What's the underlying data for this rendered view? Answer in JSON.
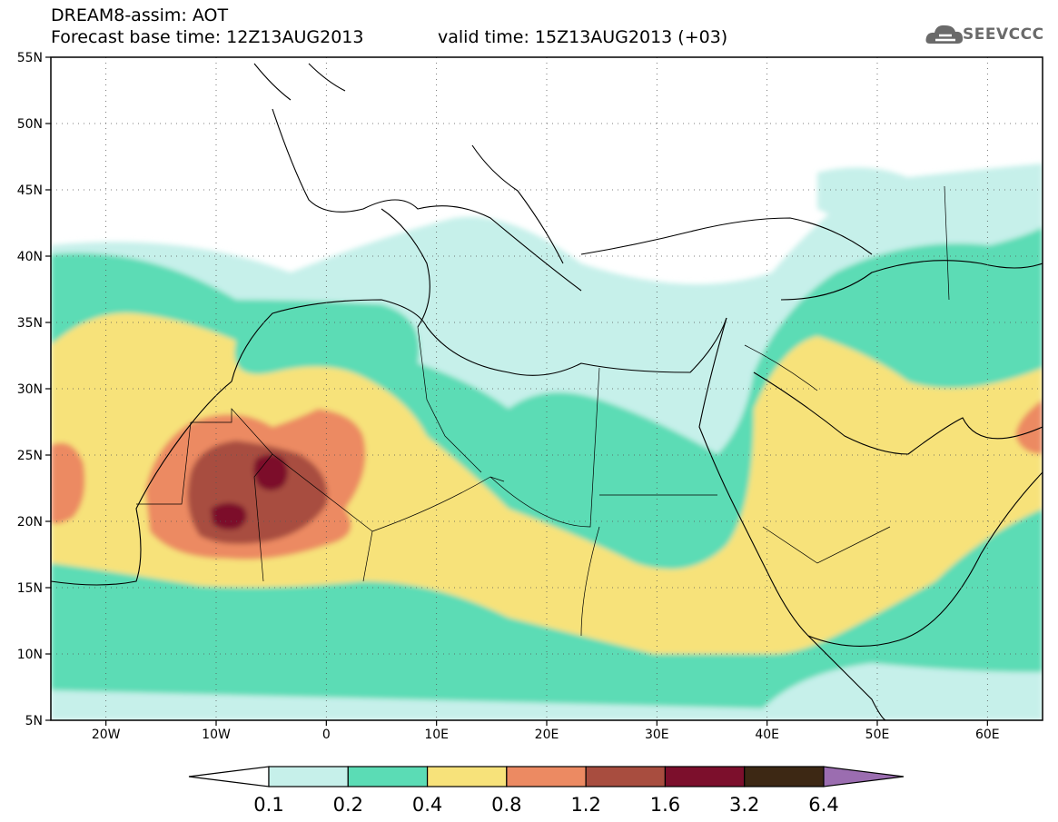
{
  "header": {
    "line1": "DREAM8-assim: AOT",
    "line2": "Forecast base time: 12Z13AUG2013",
    "line3": "valid time: 15Z13AUG2013 (+03)"
  },
  "logo": {
    "text": "SEEVCCC",
    "icon": "cloud-icon"
  },
  "map": {
    "projection": "lat-lon",
    "lon_range": [
      -25,
      65
    ],
    "lat_range": [
      5,
      55
    ],
    "lat_ticks": [
      {
        "value": 5,
        "label": "5N"
      },
      {
        "value": 10,
        "label": "10N"
      },
      {
        "value": 15,
        "label": "15N"
      },
      {
        "value": 20,
        "label": "20N"
      },
      {
        "value": 25,
        "label": "25N"
      },
      {
        "value": 30,
        "label": "30N"
      },
      {
        "value": 35,
        "label": "35N"
      },
      {
        "value": 40,
        "label": "40N"
      },
      {
        "value": 45,
        "label": "45N"
      },
      {
        "value": 50,
        "label": "50N"
      },
      {
        "value": 55,
        "label": "55N"
      }
    ],
    "lon_ticks": [
      {
        "value": -20,
        "label": "20W"
      },
      {
        "value": -10,
        "label": "10W"
      },
      {
        "value": 0,
        "label": "0"
      },
      {
        "value": 10,
        "label": "10E"
      },
      {
        "value": 20,
        "label": "20E"
      },
      {
        "value": 30,
        "label": "30E"
      },
      {
        "value": 40,
        "label": "40E"
      },
      {
        "value": 50,
        "label": "50E"
      },
      {
        "value": 60,
        "label": "60E"
      }
    ],
    "gridlines": "dotted"
  },
  "colorbar": {
    "levels": [
      "0.1",
      "0.2",
      "0.4",
      "0.8",
      "1.2",
      "1.6",
      "3.2",
      "6.4"
    ],
    "colors": [
      "#ffffff",
      "#c6f0ea",
      "#5bdcb5",
      "#f7e27a",
      "#ec8a62",
      "#a84d3f",
      "#7c0f2c",
      "#3d2814",
      "#9b6db0"
    ]
  }
}
